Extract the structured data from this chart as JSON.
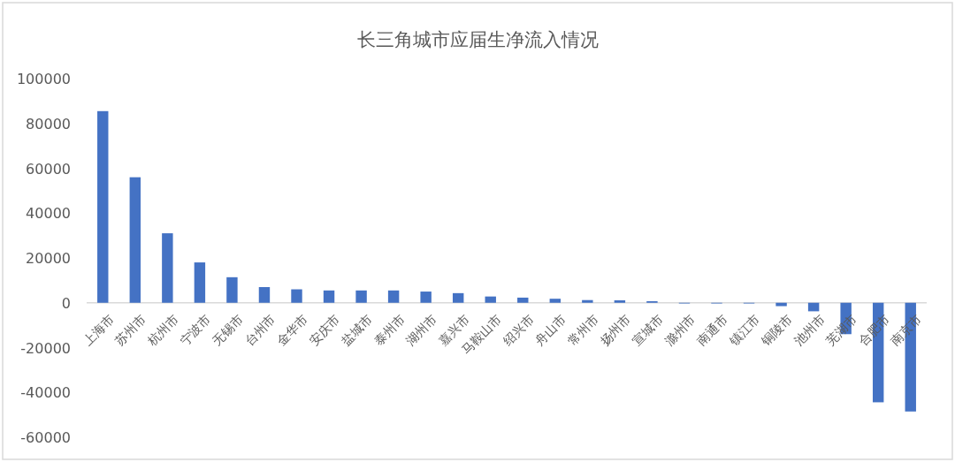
{
  "chart_data": {
    "type": "bar",
    "title": "长三角城市应届生净流入情况",
    "categories": [
      "上海市",
      "苏州市",
      "杭州市",
      "宁波市",
      "无锡市",
      "台州市",
      "金华市",
      "安庆市",
      "盐城市",
      "泰州市",
      "湖州市",
      "嘉兴市",
      "马鞍山市",
      "绍兴市",
      "舟山市",
      "常州市",
      "扬州市",
      "宣城市",
      "滁州市",
      "南通市",
      "镇江市",
      "铜陵市",
      "池州市",
      "芜湖市",
      "合肥市",
      "南京市"
    ],
    "values": [
      85500,
      56000,
      31000,
      18000,
      11400,
      7000,
      6000,
      5500,
      5500,
      5500,
      5000,
      4300,
      2800,
      2300,
      1800,
      1200,
      1100,
      700,
      0,
      -300,
      -300,
      -1500,
      -3800,
      -14000,
      -44400,
      -48500
    ],
    "color": "#4472c4",
    "ylim": [
      -60000,
      100000
    ],
    "yticks": [
      -60000,
      -40000,
      -20000,
      0,
      20000,
      40000,
      60000,
      80000,
      100000
    ]
  }
}
